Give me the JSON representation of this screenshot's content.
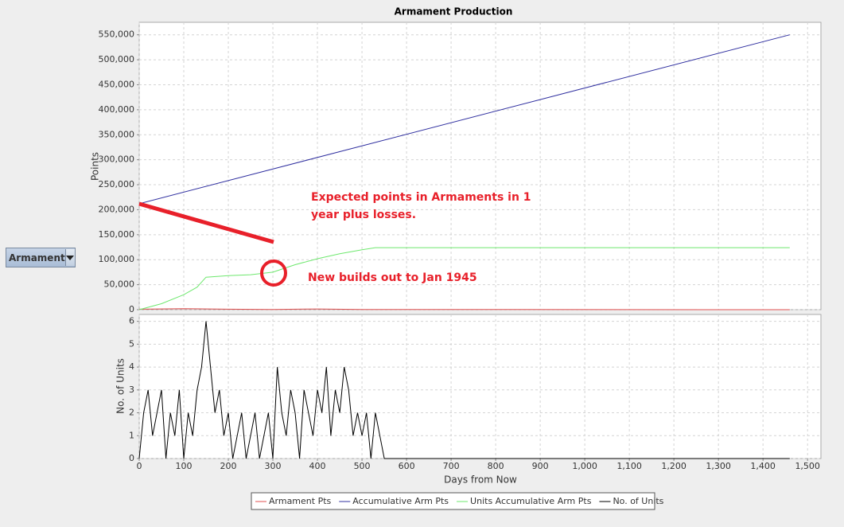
{
  "dropdown": {
    "label": "Armament"
  },
  "chart_data": [
    {
      "type": "line",
      "title": "Armament Production",
      "ylabel": "Points",
      "xlim": [
        0,
        1530
      ],
      "ylim": [
        0,
        575000
      ],
      "yticks": [
        0,
        {
          "value": 50000,
          "label": "50,000"
        },
        {
          "value": 100000,
          "label": "100,000"
        },
        {
          "value": 150000,
          "label": "150,000"
        },
        {
          "value": 200000,
          "label": "200,000"
        },
        {
          "value": 250000,
          "label": "250,000"
        },
        {
          "value": 300000,
          "label": "300,000"
        },
        {
          "value": 350000,
          "label": "350,000"
        },
        {
          "value": 400000,
          "label": "400,000"
        },
        {
          "value": 450000,
          "label": "450,000"
        },
        {
          "value": 500000,
          "label": "500,000"
        },
        {
          "value": 550000,
          "label": "550,000"
        }
      ],
      "grid": true,
      "series": [
        {
          "name": "Armament Pts",
          "color": "#e05050",
          "x": [
            0,
            100,
            200,
            300,
            400,
            500,
            1460
          ],
          "values": [
            1000,
            2000,
            1000,
            500,
            1500,
            500,
            0
          ]
        },
        {
          "name": "Accumulative Arm Pts",
          "color": "#3030a0",
          "x": [
            0,
            1460
          ],
          "values": [
            212000,
            550000
          ]
        },
        {
          "name": "Units Accumulative Arm Pts",
          "color": "#6ee86e",
          "x": [
            0,
            50,
            100,
            130,
            150,
            200,
            250,
            300,
            350,
            400,
            450,
            500,
            530,
            1460
          ],
          "values": [
            0,
            12000,
            30000,
            45000,
            65000,
            68000,
            70000,
            75000,
            90000,
            102000,
            112000,
            120000,
            124000,
            124000
          ]
        }
      ],
      "annotations": [
        {
          "text": [
            "Expected points in Armaments in 1",
            "year plus losses."
          ]
        },
        {
          "text": [
            "New builds out to Jan 1945"
          ]
        }
      ]
    },
    {
      "type": "line",
      "ylabel": "No. of Units",
      "xlabel": "Days from Now",
      "xlim": [
        0,
        1530
      ],
      "ylim": [
        0,
        6.3
      ],
      "yticks": [
        0,
        1,
        2,
        3,
        4,
        5,
        6
      ],
      "xticks": [
        0,
        100,
        200,
        300,
        400,
        500,
        600,
        700,
        800,
        900,
        {
          "value": 1000,
          "label": "1,000"
        },
        {
          "value": 1100,
          "label": "1,100"
        },
        {
          "value": 1200,
          "label": "1,200"
        },
        {
          "value": 1300,
          "label": "1,300"
        },
        {
          "value": 1400,
          "label": "1,400"
        },
        {
          "value": 1500,
          "label": "1,500"
        }
      ],
      "grid": true,
      "series": [
        {
          "name": "No. of Units",
          "color": "#000000",
          "x": [
            0,
            10,
            20,
            30,
            40,
            50,
            60,
            70,
            80,
            90,
            100,
            110,
            120,
            130,
            140,
            150,
            160,
            170,
            180,
            190,
            200,
            210,
            220,
            230,
            240,
            250,
            260,
            270,
            280,
            290,
            300,
            310,
            320,
            330,
            340,
            350,
            360,
            370,
            380,
            390,
            400,
            410,
            420,
            430,
            440,
            450,
            460,
            470,
            480,
            490,
            500,
            510,
            520,
            530,
            540,
            550,
            560,
            1460
          ],
          "values": [
            0,
            2,
            3,
            1,
            2,
            3,
            0,
            2,
            1,
            3,
            0,
            2,
            1,
            3,
            4,
            6,
            4,
            2,
            3,
            1,
            2,
            0,
            1,
            2,
            0,
            1,
            2,
            0,
            1,
            2,
            0,
            4,
            2,
            1,
            3,
            2,
            0,
            3,
            2,
            1,
            3,
            2,
            4,
            1,
            3,
            2,
            4,
            3,
            1,
            2,
            1,
            2,
            0,
            2,
            1,
            0,
            0,
            0
          ]
        }
      ]
    }
  ]
}
